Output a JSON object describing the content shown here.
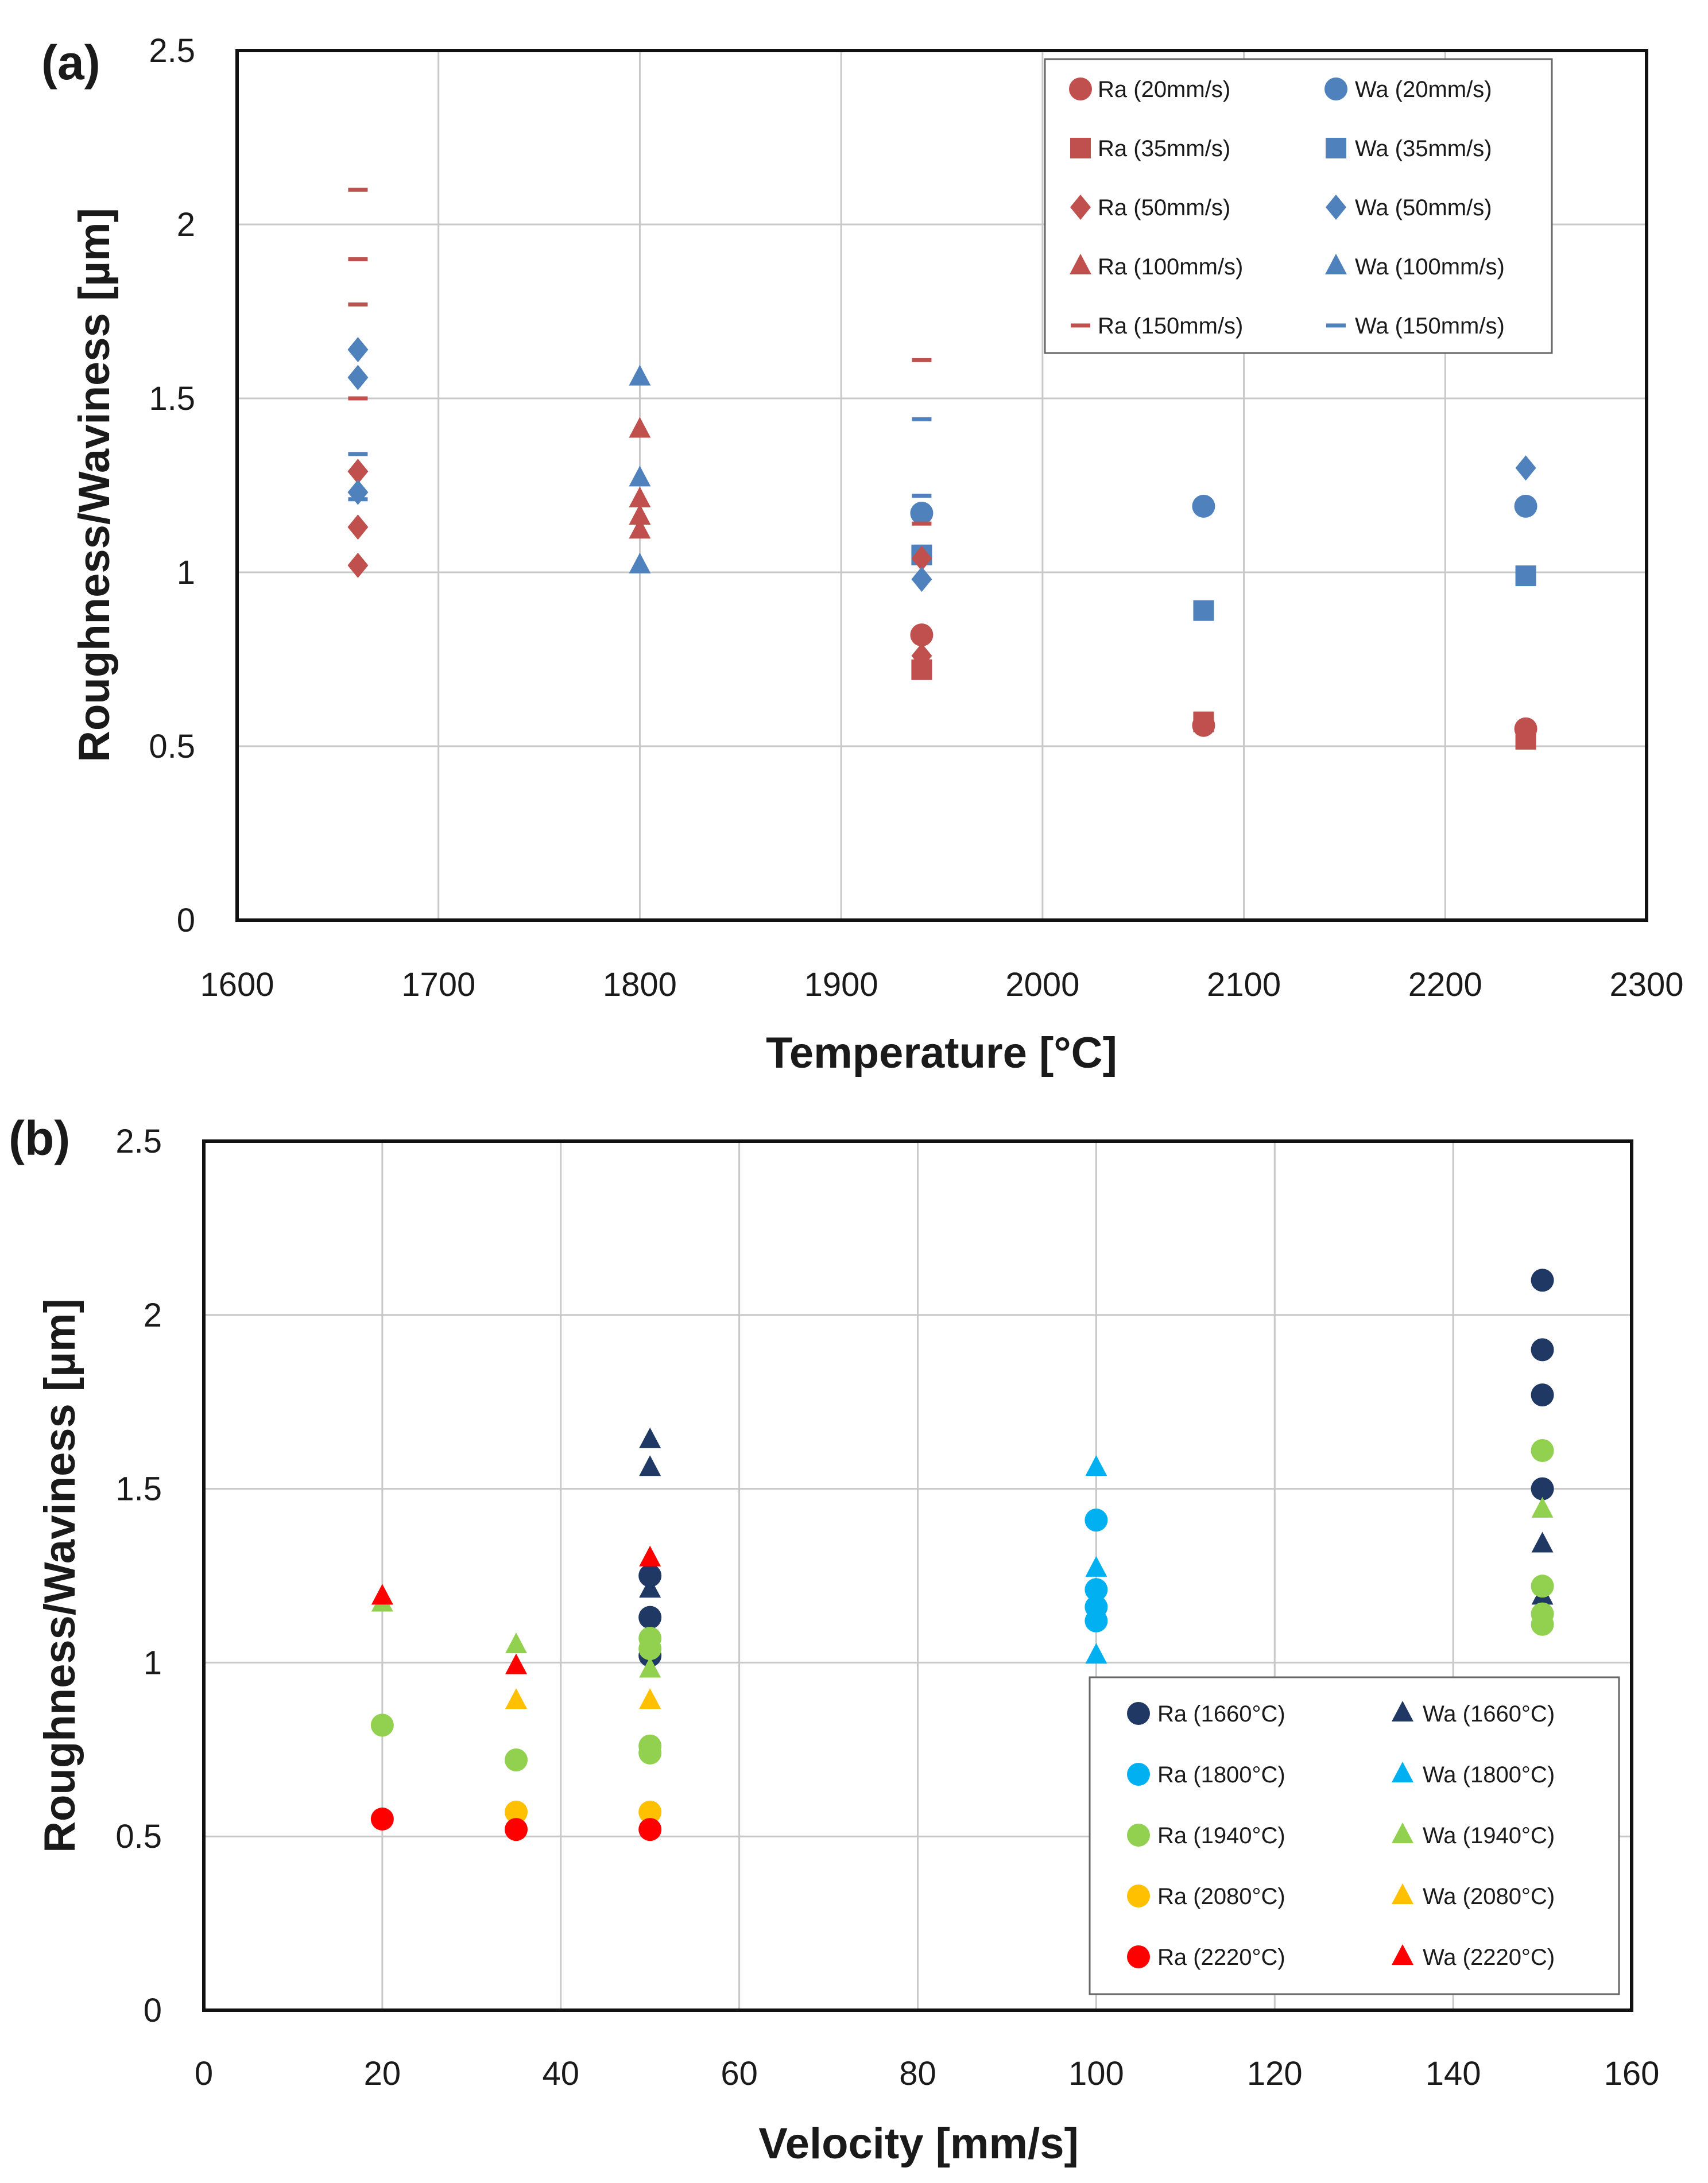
{
  "chart_data": [
    {
      "type": "scatter",
      "panel_label": "(a)",
      "title": "",
      "xlabel": "Temperature [°C]",
      "ylabel": "Roughness/Waviness [µm]",
      "xlim": [
        1600,
        2300
      ],
      "ylim": [
        0,
        2.5
      ],
      "xticks": [
        "1600",
        "1700",
        "1800",
        "1900",
        "2000",
        "2100",
        "2200",
        "2300"
      ],
      "yticks": [
        "0",
        "0.5",
        "1",
        "1.5",
        "2",
        "2.5"
      ],
      "grid": true,
      "legend_position": "top-right",
      "legend_columns": 2,
      "series": [
        {
          "name": "Ra (20mm/s)",
          "marker": "circle",
          "color": "#c0504d",
          "x": [
            1940,
            2080,
            2240
          ],
          "y": [
            0.82,
            0.56,
            0.55
          ]
        },
        {
          "name": "Wa (20mm/s)",
          "marker": "circle",
          "color": "#4f81bd",
          "x": [
            1940,
            2080,
            2240
          ],
          "y": [
            1.17,
            1.19,
            1.19
          ]
        },
        {
          "name": "Ra (35mm/s)",
          "marker": "square",
          "color": "#c0504d",
          "x": [
            1940,
            2080,
            2240
          ],
          "y": [
            0.72,
            0.57,
            0.52
          ]
        },
        {
          "name": "Wa (35mm/s)",
          "marker": "square",
          "color": "#4f81bd",
          "x": [
            1940,
            2080,
            2240
          ],
          "y": [
            1.05,
            0.89,
            0.99
          ]
        },
        {
          "name": "Ra (50mm/s)",
          "marker": "diamond",
          "color": "#c0504d",
          "x": [
            1660,
            1660,
            1660,
            1940,
            1940
          ],
          "y": [
            1.29,
            1.13,
            1.02,
            1.04,
            0.76
          ]
        },
        {
          "name": "Wa (50mm/s)",
          "marker": "diamond",
          "color": "#4f81bd",
          "x": [
            1660,
            1660,
            1660,
            1940,
            2240
          ],
          "y": [
            1.64,
            1.56,
            1.23,
            0.98,
            1.3
          ]
        },
        {
          "name": "Ra (100mm/s)",
          "marker": "triangle",
          "color": "#c0504d",
          "x": [
            1800,
            1800,
            1800,
            1800
          ],
          "y": [
            1.41,
            1.21,
            1.16,
            1.12
          ]
        },
        {
          "name": "Wa (100mm/s)",
          "marker": "triangle",
          "color": "#4f81bd",
          "x": [
            1800,
            1800,
            1800
          ],
          "y": [
            1.56,
            1.27,
            1.02
          ]
        },
        {
          "name": "Ra (150mm/s)",
          "marker": "dash",
          "color": "#c0504d",
          "x": [
            1660,
            1660,
            1660,
            1660,
            1940,
            1940
          ],
          "y": [
            2.1,
            1.9,
            1.77,
            1.5,
            1.61,
            1.14
          ]
        },
        {
          "name": "Wa (150mm/s)",
          "marker": "dash",
          "color": "#4f81bd",
          "x": [
            1660,
            1660,
            1940,
            1940
          ],
          "y": [
            1.34,
            1.21,
            1.44,
            1.22
          ]
        }
      ]
    },
    {
      "type": "scatter",
      "panel_label": "(b)",
      "title": "",
      "xlabel": "Velocity [mm/s]",
      "ylabel": "Roughness/Waviness [µm]",
      "xlim": [
        0,
        160
      ],
      "ylim": [
        0,
        2.5
      ],
      "xticks": [
        "0",
        "20",
        "40",
        "60",
        "80",
        "100",
        "120",
        "140",
        "160"
      ],
      "yticks": [
        "0",
        "0.5",
        "1",
        "1.5",
        "2",
        "2.5"
      ],
      "grid": true,
      "legend_position": "bottom-right",
      "legend_columns": 2,
      "series": [
        {
          "name": "Ra (1660°C)",
          "marker": "circle",
          "color": "#1f3864",
          "x": [
            50,
            50,
            50,
            150,
            150,
            150,
            150
          ],
          "y": [
            1.25,
            1.13,
            1.02,
            2.1,
            1.9,
            1.77,
            1.5
          ]
        },
        {
          "name": "Wa (1660°C)",
          "marker": "triangle",
          "color": "#1f3864",
          "x": [
            50,
            50,
            50,
            150,
            150
          ],
          "y": [
            1.64,
            1.56,
            1.21,
            1.34,
            1.19
          ]
        },
        {
          "name": "Ra (1800°C)",
          "marker": "circle",
          "color": "#00b0f0",
          "x": [
            100,
            100,
            100,
            100
          ],
          "y": [
            1.41,
            1.21,
            1.16,
            1.12
          ]
        },
        {
          "name": "Wa (1800°C)",
          "marker": "triangle",
          "color": "#00b0f0",
          "x": [
            100,
            100,
            100
          ],
          "y": [
            1.56,
            1.27,
            1.02
          ]
        },
        {
          "name": "Ra (1940°C)",
          "marker": "circle",
          "color": "#92d050",
          "x": [
            20,
            35,
            50,
            50,
            50,
            50,
            150,
            150,
            150,
            150
          ],
          "y": [
            0.82,
            0.72,
            1.07,
            1.04,
            0.76,
            0.74,
            1.61,
            1.22,
            1.14,
            1.11
          ]
        },
        {
          "name": "Wa (1940°C)",
          "marker": "triangle",
          "color": "#92d050",
          "x": [
            20,
            35,
            50,
            150
          ],
          "y": [
            1.17,
            1.05,
            0.98,
            1.44
          ]
        },
        {
          "name": "Ra (2080°C)",
          "marker": "circle",
          "color": "#ffc000",
          "x": [
            35,
            50
          ],
          "y": [
            0.57,
            0.57
          ]
        },
        {
          "name": "Wa (2080°C)",
          "marker": "triangle",
          "color": "#ffc000",
          "x": [
            35,
            50
          ],
          "y": [
            0.89,
            0.89
          ]
        },
        {
          "name": "Ra (2220°C)",
          "marker": "circle",
          "color": "#ff0000",
          "x": [
            20,
            35,
            50
          ],
          "y": [
            0.55,
            0.52,
            0.52
          ]
        },
        {
          "name": "Wa (2220°C)",
          "marker": "triangle",
          "color": "#ff0000",
          "x": [
            20,
            35,
            50
          ],
          "y": [
            1.19,
            0.99,
            1.3
          ]
        }
      ]
    }
  ]
}
